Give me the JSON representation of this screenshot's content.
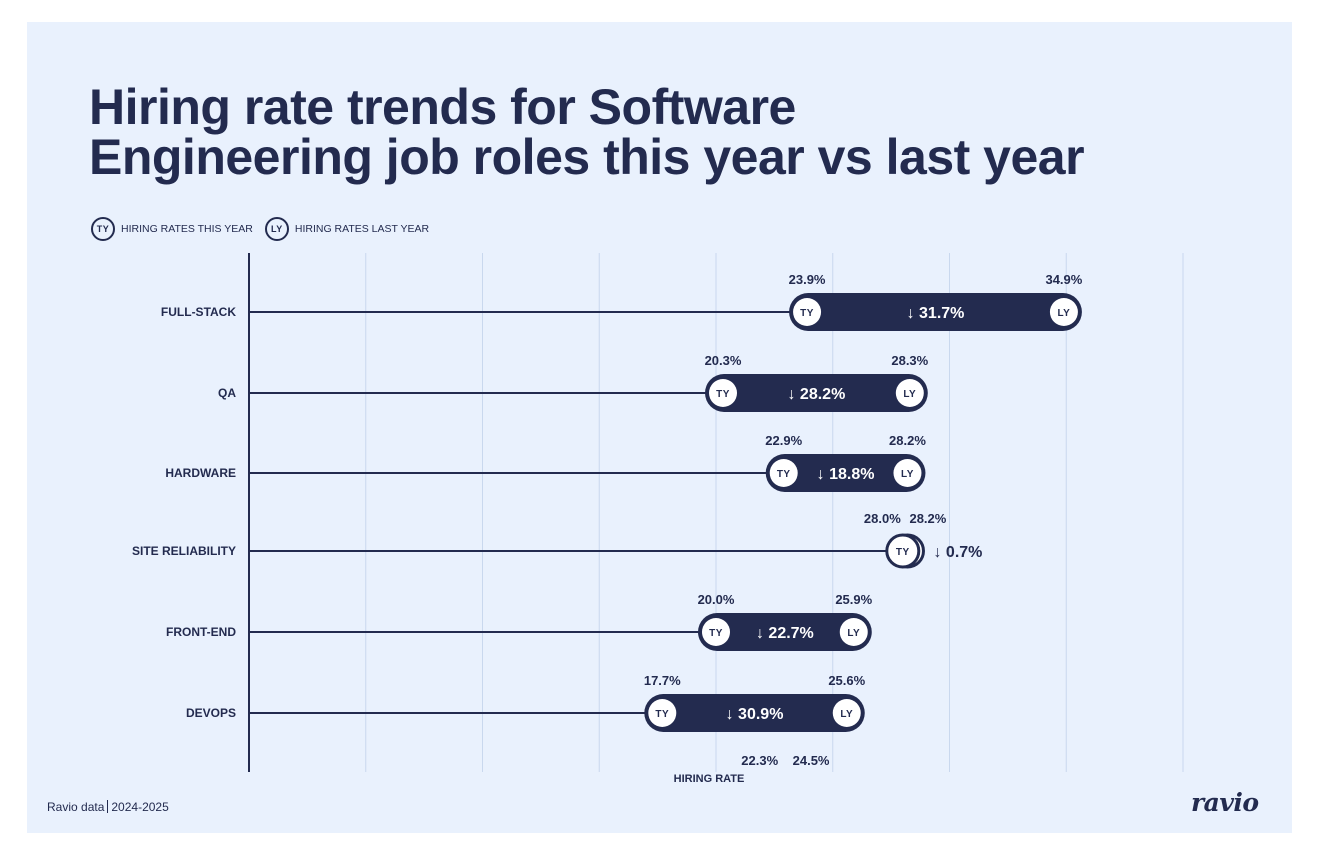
{
  "title_line1": "Hiring rate trends for Software",
  "title_line2": "Engineering job roles this year vs last year",
  "legend": [
    {
      "badge": "TY",
      "label": "HIRING RATES THIS YEAR"
    },
    {
      "badge": "LY",
      "label": "HIRING RATES LAST YEAR"
    }
  ],
  "footer": {
    "source": "Ravio data",
    "period": "2024-2025"
  },
  "logo": "ravio",
  "colors": {
    "navy": "#232b4f",
    "background": "#e9f1fd",
    "grid": "#c9d8ee",
    "badge_fill": "#ffffff"
  },
  "chart_data": {
    "type": "dumbbell",
    "title": "Hiring rate trends for Software Engineering job roles this year vs last year",
    "xlabel": "HIRING RATE",
    "ylabel": "",
    "xlim": [
      0,
      40
    ],
    "grid_step": 5,
    "grid": true,
    "legend_position": "top-left",
    "series_names": {
      "ty": "Hiring rates this year",
      "ly": "Hiring rates last year"
    },
    "categories": [
      "FULL-STACK",
      "QA",
      "HARDWARE",
      "SITE RELIABILITY",
      "FRONT-END",
      "DEVOPS"
    ],
    "rows": [
      {
        "category": "FULL-STACK",
        "ty": 23.9,
        "ly": 34.9,
        "ty_label": "23.9%",
        "ly_label": "34.9%",
        "change_label": "31.7%",
        "direction": "down"
      },
      {
        "category": "QA",
        "ty": 20.3,
        "ly": 28.3,
        "ty_label": "20.3%",
        "ly_label": "28.3%",
        "change_label": "28.2%",
        "direction": "down"
      },
      {
        "category": "HARDWARE",
        "ty": 22.9,
        "ly": 28.2,
        "ty_label": "22.9%",
        "ly_label": "28.2%",
        "change_label": "18.8%",
        "direction": "down"
      },
      {
        "category": "SITE RELIABILITY",
        "ty": 28.0,
        "ly": 28.2,
        "ty_label": "28.0%",
        "ly_label": "28.2%",
        "change_label": "0.7%",
        "direction": "down"
      },
      {
        "category": "FRONT-END",
        "ty": 20.0,
        "ly": 25.9,
        "ty_label": "20.0%",
        "ly_label": "25.9%",
        "change_label": "22.7%",
        "direction": "down"
      },
      {
        "category": "DEVOPS",
        "ty": 17.7,
        "ly": 25.6,
        "ty_label": "17.7%",
        "ly_label": "25.6%",
        "change_label": "30.9%",
        "direction": "down"
      }
    ],
    "bottom_annotations": [
      {
        "value": 22.3,
        "label": "22.3%"
      },
      {
        "value": 24.5,
        "label": "24.5%"
      }
    ]
  }
}
